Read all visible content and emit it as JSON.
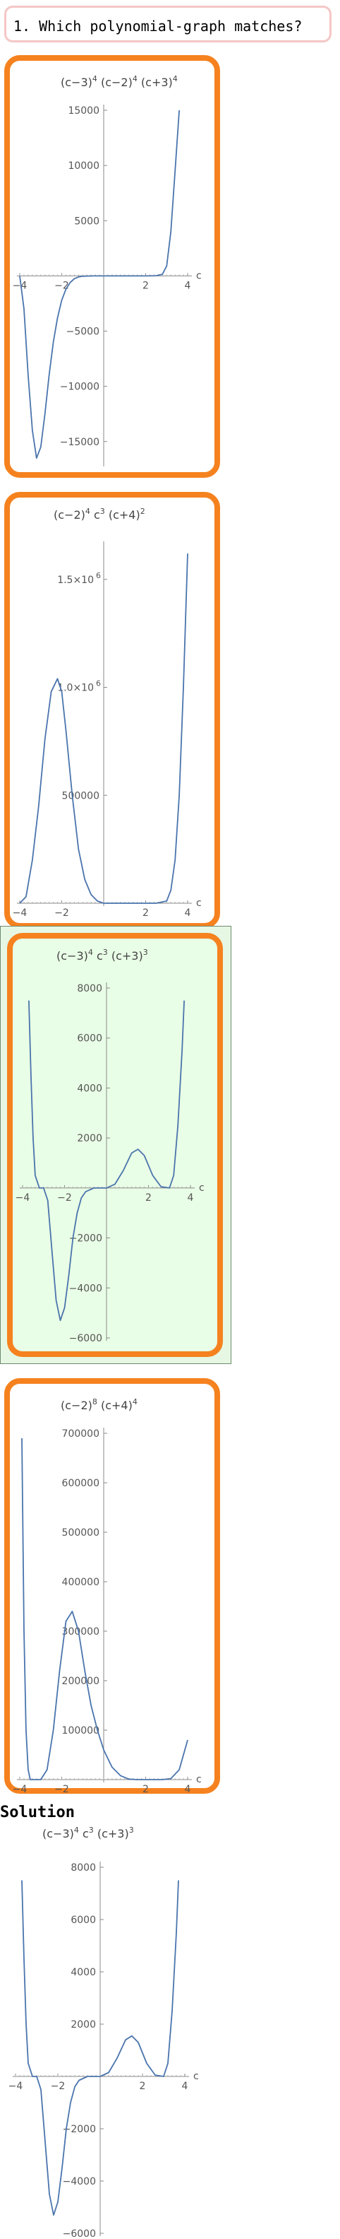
{
  "question": {
    "text": "1. Which polynomial‐graph matches?"
  },
  "solution": {
    "heading": "Solution"
  },
  "colors": {
    "option_border": "#f5821f",
    "curve": "#4a74ad",
    "highlight_bg": "#e9fee6",
    "question_border": "#f6c6c6"
  },
  "chart_data": [
    {
      "id": "option-1",
      "type": "line",
      "title": "(c−3)^4 (c−2)^4 (c+3)^4",
      "title_parts": [
        "(c−3)",
        "4",
        " (c−2)",
        "4",
        " (c+3)",
        "4"
      ],
      "xlabel": "c",
      "xlim": [
        -4,
        4
      ],
      "ylim": [
        -17000,
        15000
      ],
      "xticks": [
        -4,
        -2,
        2,
        4
      ],
      "xtick_labels": [
        "−4",
        "−2",
        "2",
        "4"
      ],
      "yticks": [
        15000,
        10000,
        5000,
        -5000,
        -10000,
        -15000
      ],
      "ytick_labels": [
        "15000",
        "10000",
        "5000",
        "−5000",
        "−10000",
        "−15000"
      ],
      "x": [
        -4.0,
        -3.8,
        -3.6,
        -3.4,
        -3.2,
        -3.0,
        -2.8,
        -2.6,
        -2.4,
        -2.2,
        -2.0,
        -1.8,
        -1.6,
        -1.4,
        -1.2,
        -1.0,
        -0.5,
        0.0,
        0.5,
        1.0,
        1.5,
        2.0,
        2.5,
        2.8,
        3.0,
        3.2,
        3.4,
        3.6
      ],
      "y": [
        0,
        -3000,
        -9000,
        -14000,
        -16500,
        -15500,
        -12500,
        -9000,
        -6000,
        -3800,
        -2200,
        -1200,
        -600,
        -250,
        -100,
        -30,
        0,
        0,
        0,
        0,
        0,
        0,
        20,
        150,
        900,
        4000,
        9500,
        15000
      ]
    },
    {
      "id": "option-2",
      "type": "line",
      "title": "(c−2)^4 c^3 (c+4)^2",
      "title_parts": [
        "(c−2)",
        "4",
        " c",
        "3",
        " (c+4)",
        "2"
      ],
      "xlabel": "c",
      "xlim": [
        -4,
        4
      ],
      "ylim": [
        0,
        1650000
      ],
      "xticks": [
        -4,
        -2,
        2,
        4
      ],
      "xtick_labels": [
        "−4",
        "−2",
        "2",
        "4"
      ],
      "yticks": [
        1500000,
        1000000,
        500000
      ],
      "ytick_labels": [
        "1.5×10^6",
        "1.0×10^6",
        "500000"
      ],
      "x": [
        -4.0,
        -3.7,
        -3.4,
        -3.1,
        -2.8,
        -2.5,
        -2.2,
        -2.0,
        -1.8,
        -1.5,
        -1.2,
        -0.9,
        -0.6,
        -0.3,
        0.0,
        0.5,
        1.0,
        1.5,
        2.0,
        2.5,
        3.0,
        3.2,
        3.4,
        3.6,
        3.8,
        4.0
      ],
      "y": [
        0,
        30000,
        200000,
        450000,
        760000,
        980000,
        1040000,
        980000,
        800000,
        500000,
        250000,
        110000,
        40000,
        10000,
        0,
        0,
        0,
        0,
        0,
        0,
        10000,
        60000,
        200000,
        500000,
        1000000,
        1620000
      ]
    },
    {
      "id": "option-3",
      "type": "line",
      "title": "(c−3)^4 c^3 (c+3)^3",
      "title_parts": [
        "(c−3)",
        "4",
        " c",
        "3",
        " (c+3)",
        "3"
      ],
      "xlabel": "c",
      "xlim": [
        -4,
        4
      ],
      "ylim": [
        -6000,
        8000
      ],
      "xticks": [
        -4,
        -2,
        2,
        4
      ],
      "xtick_labels": [
        "−4",
        "−2",
        "2",
        "4"
      ],
      "yticks": [
        8000,
        6000,
        4000,
        2000,
        -2000,
        -4000,
        -6000
      ],
      "ytick_labels": [
        "8000",
        "6000",
        "4000",
        "2000",
        "−2000",
        "−4000",
        "−6000"
      ],
      "x": [
        -3.7,
        -3.6,
        -3.5,
        -3.4,
        -3.2,
        -3.0,
        -2.8,
        -2.6,
        -2.4,
        -2.2,
        -2.0,
        -1.8,
        -1.6,
        -1.4,
        -1.2,
        -1.0,
        -0.6,
        0.0,
        0.4,
        0.8,
        1.2,
        1.5,
        1.8,
        2.2,
        2.6,
        3.0,
        3.2,
        3.4,
        3.6,
        3.7
      ],
      "y": [
        7500,
        4500,
        2000,
        500,
        0,
        0,
        -500,
        -2500,
        -4500,
        -5300,
        -4800,
        -3500,
        -2000,
        -1000,
        -400,
        -150,
        0,
        0,
        150,
        700,
        1400,
        1550,
        1300,
        500,
        50,
        0,
        500,
        2500,
        5500,
        7500
      ]
    },
    {
      "id": "option-4",
      "type": "line",
      "title": "(c−2)^8 (c+4)^4",
      "title_parts": [
        "(c−2)",
        "8",
        " (c+4)",
        "4"
      ],
      "xlabel": "c",
      "xlim": [
        -4,
        4
      ],
      "ylim": [
        0,
        700000
      ],
      "xticks": [
        -4,
        -2,
        2,
        4
      ],
      "xtick_labels": [
        "−4",
        "−2",
        "2",
        "4"
      ],
      "yticks": [
        700000,
        600000,
        500000,
        400000,
        300000,
        200000,
        100000
      ],
      "ytick_labels": [
        "700000",
        "600000",
        "500000",
        "400000",
        "300000",
        "200000",
        "100000"
      ],
      "x": [
        -3.9,
        -3.8,
        -3.7,
        -3.6,
        -3.5,
        -3.3,
        -3.0,
        -2.7,
        -2.4,
        -2.1,
        -1.8,
        -1.5,
        -1.2,
        -0.9,
        -0.6,
        -0.3,
        0.0,
        0.4,
        0.8,
        1.2,
        1.6,
        2.0,
        2.4,
        2.8,
        3.2,
        3.6,
        4.0
      ],
      "y": [
        690000,
        300000,
        100000,
        20000,
        0,
        0,
        0,
        20000,
        100000,
        220000,
        320000,
        340000,
        300000,
        220000,
        150000,
        100000,
        60000,
        25000,
        8000,
        1000,
        0,
        0,
        0,
        0,
        2000,
        20000,
        80000
      ]
    },
    {
      "id": "solution",
      "type": "line",
      "title": "(c−3)^4 c^3 (c+3)^3",
      "title_parts": [
        "(c−3)",
        "4",
        " c",
        "3",
        " (c+3)",
        "3"
      ],
      "xlabel": "c",
      "xlim": [
        -4,
        4
      ],
      "ylim": [
        -6000,
        8000
      ],
      "xticks": [
        -4,
        -2,
        2,
        4
      ],
      "xtick_labels": [
        "−4",
        "−2",
        "2",
        "4"
      ],
      "yticks": [
        8000,
        6000,
        4000,
        2000,
        -2000,
        -4000,
        -6000
      ],
      "ytick_labels": [
        "8000",
        "6000",
        "4000",
        "2000",
        "−2000",
        "−4000",
        "−6000"
      ],
      "x": [
        -3.7,
        -3.6,
        -3.5,
        -3.4,
        -3.2,
        -3.0,
        -2.8,
        -2.6,
        -2.4,
        -2.2,
        -2.0,
        -1.8,
        -1.6,
        -1.4,
        -1.2,
        -1.0,
        -0.6,
        0.0,
        0.4,
        0.8,
        1.2,
        1.5,
        1.8,
        2.2,
        2.6,
        3.0,
        3.2,
        3.4,
        3.6,
        3.7
      ],
      "y": [
        7500,
        4500,
        2000,
        500,
        0,
        0,
        -500,
        -2500,
        -4500,
        -5300,
        -4800,
        -3500,
        -2000,
        -1000,
        -400,
        -150,
        0,
        0,
        150,
        700,
        1400,
        1550,
        1300,
        500,
        50,
        0,
        500,
        2500,
        5500,
        7500
      ]
    }
  ]
}
